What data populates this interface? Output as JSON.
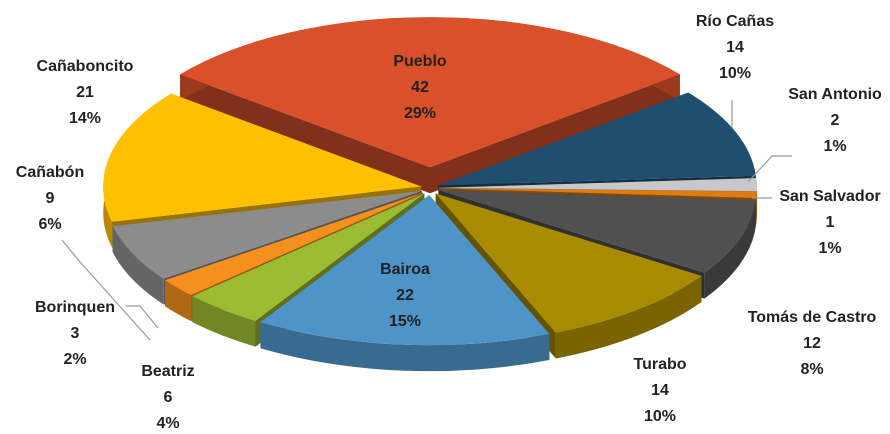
{
  "chart_data": {
    "type": "pie",
    "categories": [
      "Pueblo",
      "Río Cañas",
      "San Antonio",
      "San Salvador",
      "Tomás de Castro",
      "Turabo",
      "Bairoa",
      "Beatriz",
      "Borinquen",
      "Cañabón",
      "Cañaboncito"
    ],
    "values": [
      42,
      14,
      2,
      1,
      12,
      14,
      22,
      6,
      3,
      9,
      21
    ],
    "percentages": [
      "29%",
      "10%",
      "1%",
      "1%",
      "8%",
      "10%",
      "15%",
      "4%",
      "2%",
      "6%",
      "14%"
    ],
    "colors": [
      "#d9502a",
      "#1f4e6e",
      "#c8c8c8",
      "#e07b10",
      "#505050",
      "#a88b00",
      "#4f94c8",
      "#9bbb30",
      "#f5901e",
      "#8c8c8c",
      "#ffc000"
    ]
  }
}
